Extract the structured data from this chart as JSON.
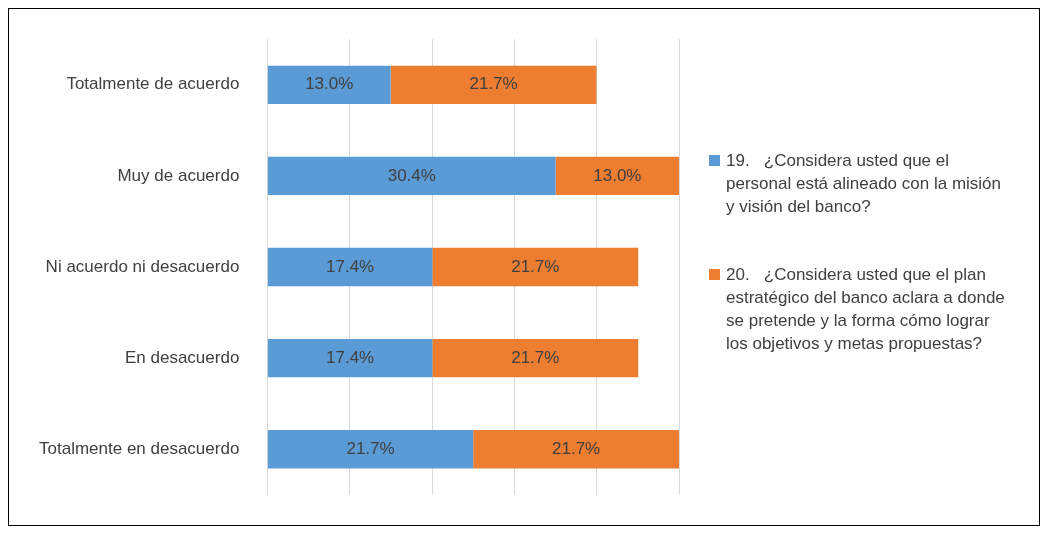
{
  "chart_data": {
    "type": "bar",
    "orientation": "horizontal",
    "stacked": true,
    "categories": [
      "Totalmente de acuerdo",
      "Muy de acuerdo",
      "Ni acuerdo ni desacuerdo",
      "En desacuerdo",
      "Totalmente en desacuerdo"
    ],
    "series": [
      {
        "name": "19.   ¿Considera usted que el personal está alineado con la misión y visión del banco?",
        "color": "#5b9bd5",
        "values": [
          13.0,
          30.4,
          17.4,
          17.4,
          21.7
        ],
        "value_labels": [
          "13.0%",
          "30.4%",
          "17.4%",
          "17.4%",
          "21.7%"
        ]
      },
      {
        "name": "20.   ¿Considera usted que el plan estratégico del banco aclara a donde se pretende y la forma cómo lograr los objetivos y metas propuestas?",
        "color": "#ed7d31",
        "values": [
          21.7,
          13.0,
          21.7,
          21.7,
          21.7
        ],
        "value_labels": [
          "21.7%",
          "13.0%",
          "21.7%",
          "21.7%",
          "21.7%"
        ]
      }
    ],
    "xlim": [
      0,
      43.4
    ],
    "grid": "x",
    "legend": "right"
  }
}
